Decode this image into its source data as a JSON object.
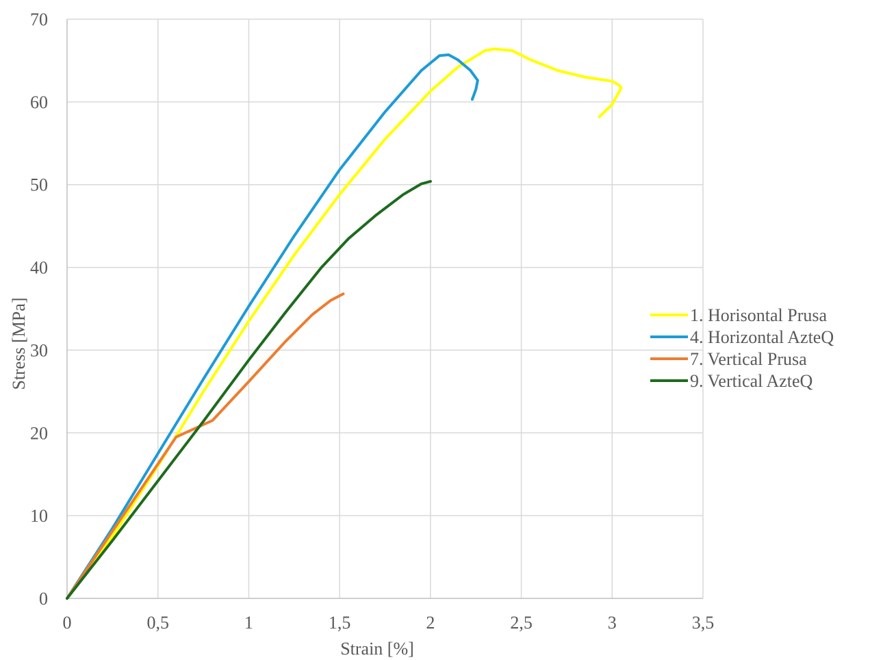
{
  "chart_data": {
    "type": "line",
    "title": "",
    "xlabel": "Strain [%]",
    "ylabel": "Stress [MPa]",
    "xlim": [
      0,
      3.5
    ],
    "ylim": [
      0,
      70
    ],
    "xticks": [
      0,
      0.5,
      1,
      1.5,
      2,
      2.5,
      3,
      3.5
    ],
    "xtick_labels": [
      "0",
      "0,5",
      "1",
      "1,5",
      "2",
      "2,5",
      "3",
      "3,5"
    ],
    "yticks": [
      0,
      10,
      20,
      30,
      40,
      50,
      60,
      70
    ],
    "ytick_labels": [
      "0",
      "10",
      "20",
      "30",
      "40",
      "50",
      "60",
      "70"
    ],
    "grid": true,
    "legend_position": "right",
    "series": [
      {
        "name": "1. Horisontal Prusa",
        "color": "#FFFF00",
        "x": [
          0,
          0.25,
          0.5,
          0.75,
          1.0,
          1.25,
          1.5,
          1.75,
          2.0,
          2.15,
          2.3,
          2.35,
          2.45,
          2.55,
          2.7,
          2.85,
          3.0,
          3.04,
          3.05,
          3.0,
          2.93
        ],
        "y": [
          0,
          7.5,
          16,
          25,
          33.5,
          41.5,
          48.8,
          55.5,
          61.3,
          64.2,
          66.2,
          66.4,
          66.2,
          65.1,
          63.8,
          63.0,
          62.5,
          62.0,
          61.7,
          59.7,
          58.2
        ]
      },
      {
        "name": "4. Horizontal AzteQ",
        "color": "#1E9BD7",
        "x": [
          0,
          0.25,
          0.5,
          0.75,
          1.0,
          1.25,
          1.5,
          1.75,
          1.95,
          2.05,
          2.1,
          2.15,
          2.22,
          2.26,
          2.25,
          2.23
        ],
        "y": [
          0,
          8.5,
          17.5,
          26.5,
          35.3,
          43.8,
          51.8,
          58.8,
          63.8,
          65.6,
          65.7,
          65.1,
          63.8,
          62.6,
          61.5,
          60.3
        ]
      },
      {
        "name": "7. Vertical Prusa",
        "color": "#ED7D31",
        "x": [
          0,
          0.2,
          0.4,
          0.6,
          0.8,
          1.0,
          1.2,
          1.35,
          1.45,
          1.52
        ],
        "y": [
          0,
          6.5,
          13,
          19.5,
          21.5,
          26.2,
          31,
          34.3,
          36,
          36.8
        ]
      },
      {
        "name": "9. Vertical AzteQ",
        "color": "#1E6B1E",
        "x": [
          0,
          0.25,
          0.5,
          0.75,
          1.0,
          1.2,
          1.4,
          1.55,
          1.7,
          1.85,
          1.95,
          2.0
        ],
        "y": [
          0,
          7,
          14.2,
          21.4,
          28.8,
          34.5,
          40,
          43.5,
          46.3,
          48.8,
          50.1,
          50.4
        ]
      }
    ]
  }
}
